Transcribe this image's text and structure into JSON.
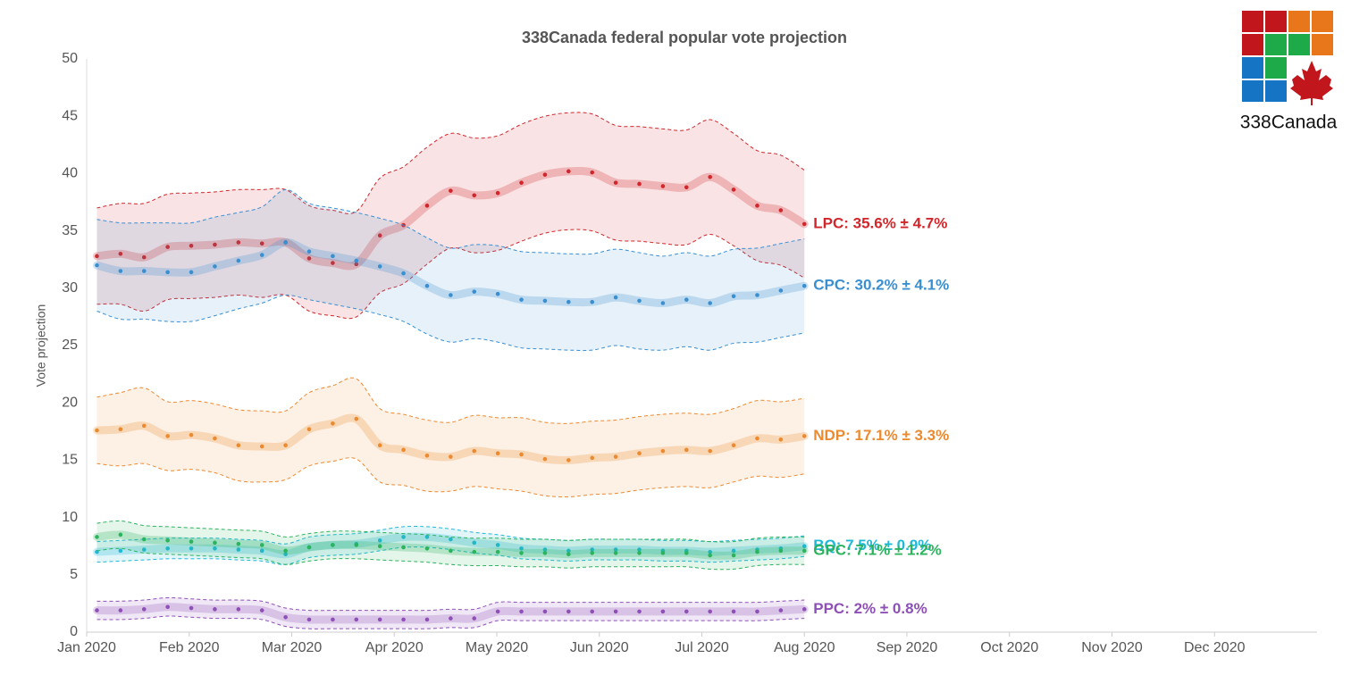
{
  "chart_data": {
    "type": "line",
    "title": "338Canada federal popular vote projection",
    "y_label": "Vote projection",
    "logo_text": "338Canada",
    "x": [
      0.1,
      0.33,
      0.56,
      0.79,
      1.02,
      1.25,
      1.48,
      1.71,
      1.94,
      2.17,
      2.4,
      2.63,
      2.86,
      3.09,
      3.32,
      3.55,
      3.78,
      4.01,
      4.24,
      4.47,
      4.7,
      4.93,
      5.16,
      5.39,
      5.62,
      5.85,
      6.08,
      6.31,
      6.54,
      6.77,
      7.0
    ],
    "xlim": [
      0,
      12
    ],
    "xticks": [
      {
        "value": 0,
        "label": "Jan 2020"
      },
      {
        "value": 1,
        "label": "Feb 2020"
      },
      {
        "value": 2,
        "label": "Mar 2020"
      },
      {
        "value": 3,
        "label": "Apr 2020"
      },
      {
        "value": 4,
        "label": "May 2020"
      },
      {
        "value": 5,
        "label": "Jun 2020"
      },
      {
        "value": 6,
        "label": "Jul 2020"
      },
      {
        "value": 7,
        "label": "Aug 2020"
      },
      {
        "value": 8,
        "label": "Sep 2020"
      },
      {
        "value": 9,
        "label": "Oct 2020"
      },
      {
        "value": 10,
        "label": "Nov 2020"
      },
      {
        "value": 11,
        "label": "Dec 2020"
      }
    ],
    "ylim": [
      0,
      50
    ],
    "yticks": [
      0,
      5,
      10,
      15,
      20,
      25,
      30,
      35,
      40,
      45,
      50
    ],
    "grid": false,
    "series": [
      {
        "name": "LPC",
        "label": "LPC: 35.6% ± 4.7%",
        "color": "#d0262c",
        "values": [
          32.8,
          33.0,
          32.7,
          33.6,
          33.7,
          33.8,
          34.0,
          33.9,
          34.0,
          32.6,
          32.2,
          32.1,
          34.6,
          35.5,
          37.2,
          38.5,
          38.1,
          38.3,
          39.2,
          39.9,
          40.2,
          40.1,
          39.2,
          39.1,
          38.9,
          38.8,
          39.7,
          38.6,
          37.2,
          36.8,
          35.6
        ],
        "errors": [
          4.2,
          4.4,
          4.7,
          4.6,
          4.6,
          4.6,
          4.6,
          4.7,
          4.6,
          4.6,
          4.6,
          4.6,
          5.0,
          5.1,
          5.1,
          5.0,
          5.0,
          5.0,
          5.1,
          5.1,
          5.1,
          5.1,
          5.0,
          5.0,
          5.0,
          5.0,
          5.0,
          4.9,
          4.8,
          4.8,
          4.7
        ]
      },
      {
        "name": "CPC",
        "label": "CPC: 30.2% ± 4.1%",
        "color": "#3a8fd1",
        "values": [
          32.0,
          31.5,
          31.5,
          31.4,
          31.4,
          31.9,
          32.4,
          32.9,
          34.0,
          33.2,
          32.8,
          32.4,
          31.9,
          31.3,
          30.2,
          29.4,
          29.7,
          29.5,
          29.0,
          28.9,
          28.8,
          28.8,
          29.2,
          28.9,
          28.7,
          29.0,
          28.7,
          29.3,
          29.4,
          29.8,
          30.2
        ],
        "errors": [
          4.0,
          4.2,
          4.2,
          4.3,
          4.3,
          4.3,
          4.2,
          4.2,
          4.6,
          4.2,
          4.2,
          4.2,
          4.2,
          4.2,
          4.2,
          4.1,
          4.1,
          4.2,
          4.2,
          4.2,
          4.2,
          4.2,
          4.2,
          4.2,
          4.1,
          4.1,
          4.1,
          4.1,
          4.1,
          4.1,
          4.1
        ]
      },
      {
        "name": "NDP",
        "label": "NDP: 17.1% ± 3.3%",
        "color": "#ec8a30",
        "values": [
          17.6,
          17.7,
          18.0,
          17.1,
          17.2,
          16.9,
          16.3,
          16.2,
          16.3,
          17.7,
          18.2,
          18.6,
          16.3,
          15.9,
          15.4,
          15.3,
          15.8,
          15.6,
          15.5,
          15.1,
          15.0,
          15.2,
          15.3,
          15.6,
          15.8,
          15.9,
          15.8,
          16.3,
          16.9,
          16.8,
          17.1
        ],
        "errors": [
          2.9,
          3.2,
          3.3,
          3.0,
          3.0,
          3.0,
          3.1,
          3.1,
          3.0,
          3.2,
          3.3,
          3.5,
          3.2,
          3.1,
          3.1,
          3.0,
          3.1,
          3.1,
          3.2,
          3.2,
          3.2,
          3.2,
          3.2,
          3.2,
          3.2,
          3.2,
          3.2,
          3.2,
          3.3,
          3.3,
          3.3
        ]
      },
      {
        "name": "BQ",
        "label": "BQ: 7.5% ± 0.9%",
        "color": "#1fb8d6",
        "values": [
          7.0,
          7.1,
          7.2,
          7.3,
          7.3,
          7.3,
          7.2,
          7.1,
          6.8,
          7.4,
          7.6,
          7.7,
          8.0,
          8.3,
          8.3,
          8.1,
          7.8,
          7.6,
          7.3,
          7.2,
          7.1,
          7.2,
          7.2,
          7.2,
          7.1,
          7.1,
          7.0,
          7.1,
          7.2,
          7.3,
          7.5
        ],
        "errors": [
          0.9,
          0.9,
          0.9,
          0.9,
          0.9,
          0.9,
          0.9,
          0.9,
          0.9,
          0.9,
          0.9,
          0.9,
          0.9,
          0.9,
          0.9,
          0.9,
          0.9,
          0.9,
          0.9,
          0.9,
          0.9,
          0.9,
          0.9,
          0.9,
          0.9,
          0.9,
          0.9,
          0.9,
          0.9,
          0.9,
          0.9
        ]
      },
      {
        "name": "GPC",
        "label": "GPC: 7.1% ± 1.2%",
        "color": "#2cb35e",
        "values": [
          8.3,
          8.5,
          8.1,
          8.0,
          7.9,
          7.8,
          7.7,
          7.6,
          7.1,
          7.4,
          7.6,
          7.6,
          7.5,
          7.4,
          7.3,
          7.1,
          7.0,
          7.0,
          6.9,
          6.9,
          6.8,
          6.9,
          6.9,
          6.9,
          6.9,
          6.9,
          6.7,
          6.7,
          7.0,
          7.1,
          7.1
        ],
        "errors": [
          1.2,
          1.2,
          1.2,
          1.2,
          1.2,
          1.2,
          1.2,
          1.2,
          1.2,
          1.2,
          1.2,
          1.2,
          1.2,
          1.2,
          1.2,
          1.2,
          1.2,
          1.2,
          1.2,
          1.2,
          1.2,
          1.2,
          1.2,
          1.2,
          1.2,
          1.2,
          1.2,
          1.2,
          1.2,
          1.2,
          1.2
        ]
      },
      {
        "name": "PPC",
        "label": "PPC: 2% ± 0.8%",
        "color": "#8e50b6",
        "values": [
          1.9,
          1.9,
          2.0,
          2.2,
          2.1,
          2.0,
          2.0,
          1.9,
          1.3,
          1.1,
          1.1,
          1.1,
          1.1,
          1.1,
          1.1,
          1.2,
          1.2,
          1.8,
          1.8,
          1.8,
          1.8,
          1.8,
          1.8,
          1.8,
          1.8,
          1.8,
          1.8,
          1.8,
          1.8,
          1.9,
          2.0
        ],
        "errors": [
          0.8,
          0.8,
          0.8,
          0.8,
          0.8,
          0.8,
          0.8,
          0.8,
          0.8,
          0.8,
          0.8,
          0.8,
          0.8,
          0.8,
          0.8,
          0.8,
          0.8,
          0.8,
          0.8,
          0.8,
          0.8,
          0.8,
          0.8,
          0.8,
          0.8,
          0.8,
          0.8,
          0.8,
          0.8,
          0.8,
          0.8
        ]
      }
    ]
  }
}
